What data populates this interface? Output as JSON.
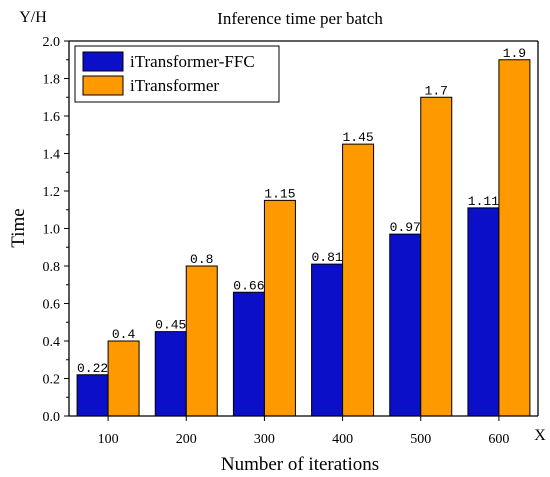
{
  "chart_data": {
    "type": "bar",
    "title": "Inference time per batch",
    "xlabel": "Number of iterations",
    "ylabel": "Time",
    "x_unit": "X",
    "y_unit": "Y/H",
    "categories": [
      "100",
      "200",
      "300",
      "400",
      "500",
      "600"
    ],
    "ylim": [
      0,
      2.0
    ],
    "yticks": [
      "0.0",
      "0.2",
      "0.4",
      "0.6",
      "0.8",
      "1.0",
      "1.2",
      "1.4",
      "1.6",
      "1.8",
      "2.0"
    ],
    "legend_position": "top-left",
    "grid": false,
    "series": [
      {
        "name": "iTransformer-FFC",
        "color": "#0b10c8",
        "values": [
          0.22,
          0.45,
          0.66,
          0.81,
          0.97,
          1.11
        ],
        "labels": [
          "0.22",
          "0.45",
          "0.66",
          "0.81",
          "0.97",
          "1.11"
        ]
      },
      {
        "name": "iTransformer",
        "color": "#ff9900",
        "values": [
          0.4,
          0.8,
          1.15,
          1.45,
          1.7,
          1.9
        ],
        "labels": [
          "0.4",
          "0.8",
          "1.15",
          "1.45",
          "1.7",
          "1.9"
        ]
      }
    ]
  }
}
